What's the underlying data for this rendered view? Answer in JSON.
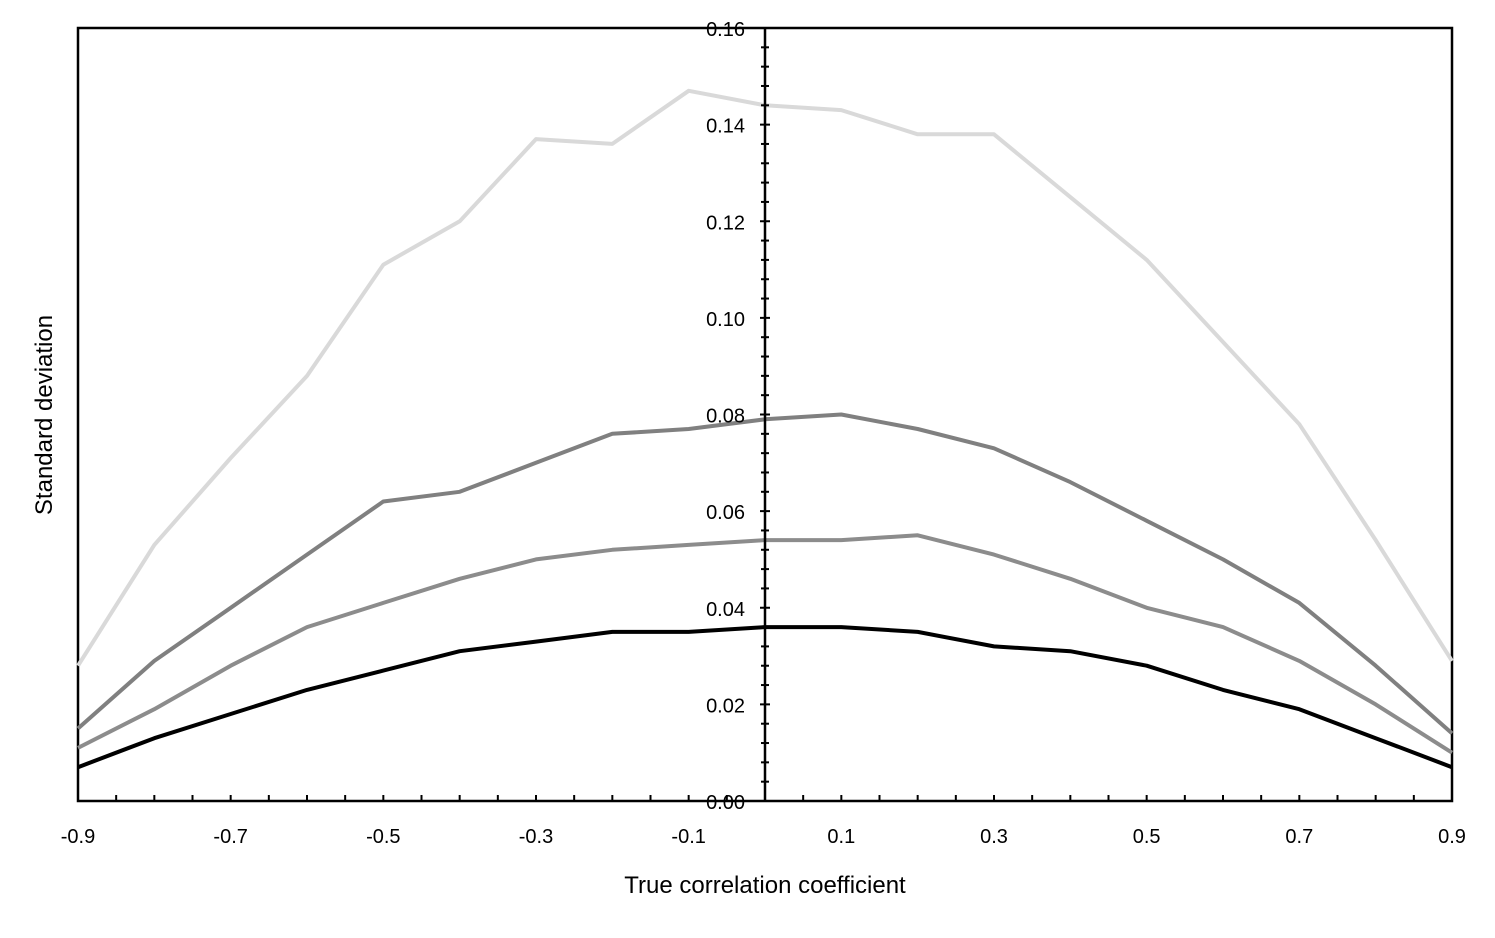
{
  "chart_data": {
    "type": "line",
    "title": "",
    "xlabel": "True correlation coefficient",
    "ylabel": "Standard deviation",
    "x": [
      -0.9,
      -0.8,
      -0.7,
      -0.6,
      -0.5,
      -0.4,
      -0.3,
      -0.2,
      -0.1,
      0.0,
      0.1,
      0.2,
      0.3,
      0.4,
      0.5,
      0.6,
      0.7,
      0.8,
      0.9
    ],
    "xlim": [
      -0.9,
      0.9
    ],
    "ylim": [
      0,
      0.16
    ],
    "x_tick_labels": [
      "-0.9",
      "-0.7",
      "-0.5",
      "-0.3",
      "-0.1",
      "0.1",
      "0.3",
      "0.5",
      "0.7",
      "0.9"
    ],
    "y_tick_labels": [
      "0.00",
      "0.02",
      "0.04",
      "0.06",
      "0.08",
      "0.10",
      "0.12",
      "0.14",
      "0.16"
    ],
    "grid": false,
    "legend": "none",
    "series": [
      {
        "color": "#d9d9d9",
        "values": [
          0.028,
          0.053,
          0.071,
          0.088,
          0.111,
          0.12,
          0.137,
          0.136,
          0.147,
          0.144,
          0.143,
          0.138,
          0.138,
          0.125,
          0.112,
          0.095,
          0.078,
          0.054,
          0.029
        ]
      },
      {
        "color": "#808080",
        "values": [
          0.015,
          0.029,
          0.04,
          0.051,
          0.062,
          0.064,
          0.07,
          0.076,
          0.077,
          0.079,
          0.08,
          0.077,
          0.073,
          0.066,
          0.058,
          0.05,
          0.041,
          0.028,
          0.014
        ]
      },
      {
        "color": "#8c8c8c",
        "values": [
          0.011,
          0.019,
          0.028,
          0.036,
          0.041,
          0.046,
          0.05,
          0.052,
          0.053,
          0.054,
          0.054,
          0.055,
          0.051,
          0.046,
          0.04,
          0.036,
          0.029,
          0.02,
          0.01
        ]
      },
      {
        "color": "#000000",
        "values": [
          0.007,
          0.013,
          0.018,
          0.023,
          0.027,
          0.031,
          0.033,
          0.035,
          0.035,
          0.036,
          0.036,
          0.035,
          0.032,
          0.031,
          0.028,
          0.023,
          0.019,
          0.013,
          0.007
        ]
      }
    ]
  }
}
